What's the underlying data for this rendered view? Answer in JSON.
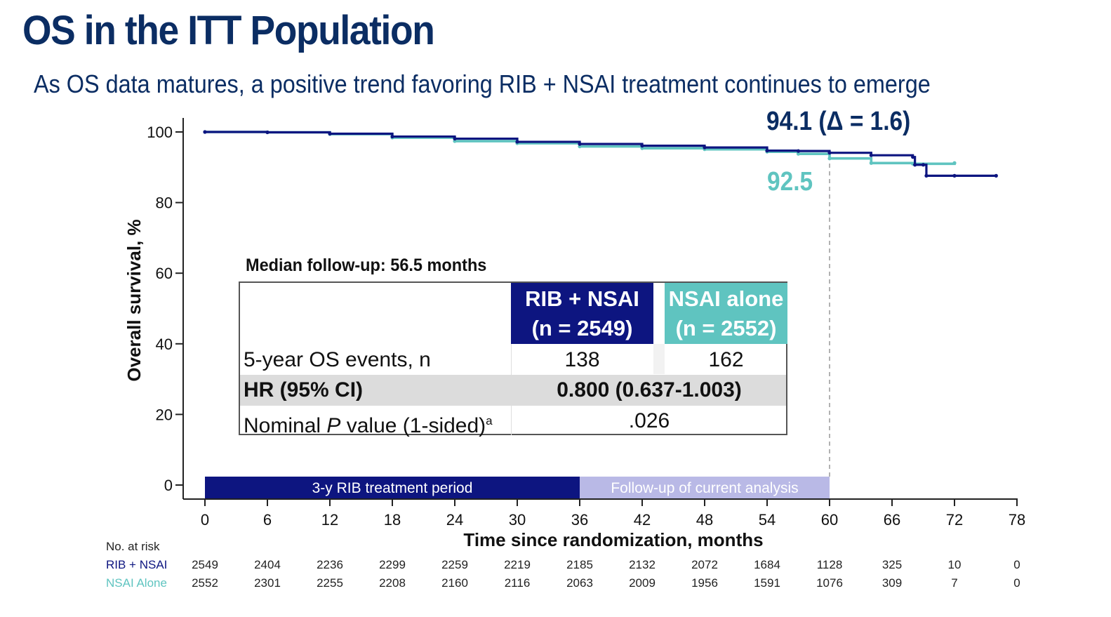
{
  "title": "OS in the ITT Population",
  "subtitle": "As OS data matures, a positive trend favoring RIB + NSAI treatment continues to emerge",
  "colors": {
    "title": "#0b2d63",
    "rib": "#0d1580",
    "nsai": "#5fc4c0",
    "followup": "#b9b9e6"
  },
  "annotations": {
    "rib_os": "94.1 (Δ = 1.6)",
    "nsai_os": "92.5"
  },
  "table": {
    "median_followup": "Median follow-up: 56.5 months",
    "rib_header_line1": "RIB + NSAI",
    "rib_header_line2": "(n = 2549)",
    "nsai_header_line1": "NSAI alone",
    "nsai_header_line2": "(n = 2552)",
    "row1_label": "5-year OS events, n",
    "row1_rib": "138",
    "row1_nsai": "162",
    "row2_label": "HR (95% CI)",
    "row2_value": "0.800 (0.637-1.003)",
    "row3_label_pre": "Nominal ",
    "row3_label_p": "P",
    "row3_label_post": " value (1-sided)",
    "row3_label_sup": "a",
    "row3_value": ".026"
  },
  "periods": {
    "treatment": "3-y RIB treatment period",
    "followup": "Follow-up of current analysis"
  },
  "chart_data": {
    "type": "line",
    "title": "",
    "xlabel": "Time since randomization, months",
    "ylabel": "Overall survival, %",
    "xlim": [
      0,
      78
    ],
    "ylim": [
      0,
      100
    ],
    "x_ticks": [
      0,
      6,
      12,
      18,
      24,
      30,
      36,
      42,
      48,
      54,
      60,
      66,
      72,
      78
    ],
    "y_ticks": [
      0,
      20,
      40,
      60,
      80,
      100
    ],
    "reference_line_x": 60,
    "series": [
      {
        "name": "RIB + NSAI",
        "x": [
          0,
          6,
          12,
          18,
          24,
          30,
          36,
          42,
          48,
          54,
          57,
          60,
          64,
          68,
          68.2,
          69,
          69.3,
          72,
          76
        ],
        "values": [
          100,
          99.9,
          99.5,
          98.7,
          98.1,
          97.2,
          96.6,
          96.1,
          95.6,
          94.7,
          94.6,
          94.1,
          93.4,
          92.9,
          90.7,
          90.7,
          87.6,
          87.6,
          87.6
        ]
      },
      {
        "name": "NSAI Alone",
        "x": [
          0,
          6,
          12,
          18,
          24,
          30,
          36,
          42,
          48,
          54,
          57,
          60,
          64,
          68,
          72
        ],
        "values": [
          100,
          99.9,
          99.4,
          98.4,
          97.4,
          96.8,
          95.9,
          95.4,
          95.1,
          94.4,
          93.8,
          92.5,
          91.2,
          91.0,
          91.2
        ]
      }
    ],
    "at_risk": {
      "title": "No. at risk",
      "times": [
        0,
        6,
        12,
        18,
        24,
        30,
        36,
        42,
        48,
        54,
        60,
        66,
        72,
        78
      ],
      "rows": [
        {
          "name": "RIB + NSAI",
          "values": [
            2549,
            2404,
            2236,
            2299,
            2259,
            2219,
            2185,
            2132,
            2072,
            1684,
            1128,
            325,
            10,
            0
          ]
        },
        {
          "name": "NSAI Alone",
          "values": [
            2552,
            2301,
            2255,
            2208,
            2160,
            2116,
            2063,
            2009,
            1956,
            1591,
            1076,
            309,
            7,
            0
          ]
        }
      ]
    }
  }
}
